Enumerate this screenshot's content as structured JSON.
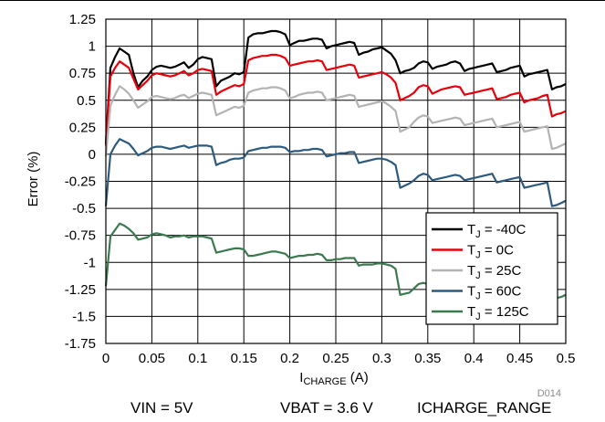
{
  "figure_id": "D014",
  "conditions": [
    "VIN = 5V",
    "VBAT = 3.6 V",
    "ICHARGE_RANGE"
  ],
  "chart_data": {
    "type": "line",
    "title": "",
    "xlabel": "I",
    "xlabel_sub": "CHARGE",
    "xlabel_unit": " (A)",
    "ylabel": "Error (%)",
    "xlim": [
      0,
      0.5
    ],
    "ylim": [
      -1.75,
      1.25
    ],
    "grid": true,
    "legend_position": "bottom-right",
    "x_ticks": [
      0,
      0.05,
      0.1,
      0.15,
      0.2,
      0.25,
      0.3,
      0.35,
      0.4,
      0.45,
      0.5
    ],
    "x_tick_labels": [
      "0",
      "0.05",
      "0.1",
      "0.15",
      "0.2",
      "0.25",
      "0.3",
      "0.35",
      "0.4",
      "0.45",
      "0.5"
    ],
    "y_ticks": [
      1.25,
      1,
      0.75,
      0.5,
      0.25,
      0,
      -0.25,
      -0.5,
      -0.75,
      -1,
      -1.25,
      -1.5,
      -1.75
    ],
    "y_tick_labels": [
      "1.25",
      "1",
      "0.75",
      "0.5",
      "0.25",
      "0",
      "-0.25",
      "-0.5",
      "-0.75",
      "-1",
      "-1.25",
      "-1.5",
      "-1.75"
    ],
    "x": [
      0,
      0.005,
      0.01,
      0.015,
      0.02,
      0.025,
      0.03,
      0.035,
      0.04,
      0.045,
      0.05,
      0.055,
      0.06,
      0.065,
      0.07,
      0.075,
      0.08,
      0.085,
      0.09,
      0.095,
      0.1,
      0.105,
      0.11,
      0.115,
      0.12,
      0.125,
      0.13,
      0.135,
      0.14,
      0.145,
      0.15,
      0.155,
      0.16,
      0.165,
      0.17,
      0.175,
      0.18,
      0.185,
      0.19,
      0.195,
      0.2,
      0.205,
      0.21,
      0.215,
      0.22,
      0.225,
      0.23,
      0.235,
      0.24,
      0.245,
      0.25,
      0.255,
      0.26,
      0.265,
      0.27,
      0.275,
      0.28,
      0.285,
      0.29,
      0.295,
      0.3,
      0.305,
      0.31,
      0.315,
      0.32,
      0.325,
      0.33,
      0.335,
      0.34,
      0.345,
      0.35,
      0.355,
      0.36,
      0.365,
      0.37,
      0.375,
      0.38,
      0.385,
      0.39,
      0.395,
      0.4,
      0.405,
      0.41,
      0.415,
      0.42,
      0.425,
      0.43,
      0.435,
      0.44,
      0.445,
      0.45,
      0.455,
      0.46,
      0.465,
      0.47,
      0.475,
      0.48,
      0.485,
      0.49,
      0.495,
      0.5
    ],
    "series": [
      {
        "name": "T_J = -40C",
        "name_main": "T",
        "name_sub": "J",
        "name_rest": " = -40C",
        "color": "#000000",
        "values": [
          0.1,
          0.8,
          0.9,
          0.98,
          0.95,
          0.92,
          0.75,
          0.62,
          0.68,
          0.72,
          0.78,
          0.81,
          0.82,
          0.81,
          0.8,
          0.81,
          0.83,
          0.85,
          0.8,
          0.83,
          0.88,
          0.9,
          0.89,
          0.88,
          0.63,
          0.68,
          0.7,
          0.72,
          0.75,
          0.74,
          0.76,
          1.08,
          1.11,
          1.12,
          1.12,
          1.13,
          1.14,
          1.14,
          1.13,
          1.11,
          1.01,
          1.03,
          1.05,
          1.05,
          1.06,
          1.07,
          1.07,
          1.06,
          0.98,
          1.0,
          1.01,
          1.02,
          1.03,
          1.04,
          1.03,
          0.92,
          0.94,
          0.95,
          0.97,
          0.98,
          0.99,
          0.96,
          0.93,
          0.87,
          0.75,
          0.77,
          0.78,
          0.8,
          0.84,
          0.86,
          0.85,
          0.79,
          0.81,
          0.82,
          0.83,
          0.85,
          0.86,
          0.84,
          0.77,
          0.79,
          0.8,
          0.81,
          0.82,
          0.83,
          0.84,
          0.76,
          0.77,
          0.78,
          0.8,
          0.81,
          0.82,
          0.72,
          0.74,
          0.75,
          0.76,
          0.77,
          0.78,
          0.6,
          0.62,
          0.63,
          0.65
        ]
      },
      {
        "name": "T_J = 0C",
        "name_main": "T",
        "name_sub": "J",
        "name_rest": " = 0C",
        "color": "#e8000b",
        "values": [
          0.08,
          0.72,
          0.8,
          0.86,
          0.83,
          0.8,
          0.7,
          0.6,
          0.64,
          0.68,
          0.73,
          0.75,
          0.74,
          0.73,
          0.72,
          0.73,
          0.75,
          0.77,
          0.73,
          0.75,
          0.78,
          0.79,
          0.78,
          0.77,
          0.55,
          0.58,
          0.6,
          0.62,
          0.64,
          0.63,
          0.65,
          0.87,
          0.89,
          0.9,
          0.91,
          0.91,
          0.92,
          0.92,
          0.91,
          0.89,
          0.82,
          0.83,
          0.84,
          0.85,
          0.86,
          0.86,
          0.87,
          0.86,
          0.78,
          0.79,
          0.8,
          0.81,
          0.82,
          0.83,
          0.82,
          0.71,
          0.72,
          0.73,
          0.74,
          0.75,
          0.76,
          0.74,
          0.71,
          0.66,
          0.5,
          0.52,
          0.54,
          0.57,
          0.62,
          0.64,
          0.63,
          0.56,
          0.58,
          0.6,
          0.61,
          0.62,
          0.63,
          0.62,
          0.55,
          0.56,
          0.57,
          0.58,
          0.59,
          0.6,
          0.61,
          0.51,
          0.52,
          0.53,
          0.55,
          0.56,
          0.57,
          0.48,
          0.5,
          0.51,
          0.52,
          0.54,
          0.55,
          0.35,
          0.37,
          0.38,
          0.4
        ]
      },
      {
        "name": "T_J = 25C",
        "name_main": "T",
        "name_sub": "J",
        "name_rest": " = 25C",
        "color": "#b3b3b3",
        "values": [
          -0.02,
          0.45,
          0.55,
          0.63,
          0.6,
          0.56,
          0.5,
          0.43,
          0.46,
          0.49,
          0.53,
          0.54,
          0.53,
          0.52,
          0.51,
          0.52,
          0.54,
          0.55,
          0.52,
          0.54,
          0.56,
          0.57,
          0.56,
          0.55,
          0.36,
          0.38,
          0.4,
          0.42,
          0.44,
          0.43,
          0.45,
          0.57,
          0.59,
          0.6,
          0.61,
          0.61,
          0.62,
          0.62,
          0.61,
          0.59,
          0.52,
          0.53,
          0.55,
          0.56,
          0.57,
          0.57,
          0.58,
          0.57,
          0.5,
          0.51,
          0.52,
          0.53,
          0.54,
          0.55,
          0.54,
          0.44,
          0.45,
          0.46,
          0.47,
          0.48,
          0.49,
          0.47,
          0.44,
          0.4,
          0.21,
          0.23,
          0.25,
          0.3,
          0.34,
          0.36,
          0.35,
          0.29,
          0.3,
          0.31,
          0.32,
          0.33,
          0.34,
          0.33,
          0.27,
          0.28,
          0.29,
          0.3,
          0.31,
          0.32,
          0.33,
          0.25,
          0.26,
          0.27,
          0.28,
          0.29,
          0.3,
          0.21,
          0.22,
          0.23,
          0.24,
          0.25,
          0.26,
          0.05,
          0.06,
          0.08,
          0.1
        ]
      },
      {
        "name": "T_J = 60C",
        "name_main": "T",
        "name_sub": "J",
        "name_rest": " = 60C",
        "color": "#2d5b7f",
        "values": [
          -0.48,
          0.0,
          0.08,
          0.14,
          0.12,
          0.1,
          0.05,
          -0.01,
          0.01,
          0.03,
          0.06,
          0.07,
          0.07,
          0.06,
          0.05,
          0.06,
          0.07,
          0.08,
          0.06,
          0.07,
          0.08,
          0.08,
          0.08,
          0.07,
          -0.1,
          -0.08,
          -0.07,
          -0.05,
          -0.04,
          -0.04,
          -0.03,
          0.03,
          0.04,
          0.05,
          0.06,
          0.06,
          0.07,
          0.07,
          0.07,
          0.06,
          0.02,
          0.03,
          0.03,
          0.04,
          0.04,
          0.05,
          0.05,
          0.04,
          -0.02,
          -0.01,
          0.0,
          0.01,
          0.01,
          0.02,
          0.02,
          -0.08,
          -0.07,
          -0.06,
          -0.05,
          -0.04,
          -0.04,
          -0.05,
          -0.07,
          -0.1,
          -0.31,
          -0.29,
          -0.27,
          -0.24,
          -0.2,
          -0.18,
          -0.19,
          -0.24,
          -0.23,
          -0.22,
          -0.21,
          -0.2,
          -0.19,
          -0.2,
          -0.24,
          -0.23,
          -0.22,
          -0.21,
          -0.2,
          -0.19,
          -0.18,
          -0.26,
          -0.25,
          -0.24,
          -0.23,
          -0.22,
          -0.21,
          -0.31,
          -0.3,
          -0.29,
          -0.28,
          -0.27,
          -0.26,
          -0.48,
          -0.47,
          -0.45,
          -0.43
        ]
      },
      {
        "name": "T_J = 125C",
        "name_main": "T",
        "name_sub": "J",
        "name_rest": " = 125C",
        "color": "#3b7a4f",
        "values": [
          -1.22,
          -0.76,
          -0.7,
          -0.64,
          -0.66,
          -0.69,
          -0.73,
          -0.79,
          -0.78,
          -0.77,
          -0.74,
          -0.73,
          -0.74,
          -0.75,
          -0.77,
          -0.76,
          -0.76,
          -0.75,
          -0.77,
          -0.76,
          -0.76,
          -0.76,
          -0.77,
          -0.78,
          -0.91,
          -0.9,
          -0.89,
          -0.88,
          -0.87,
          -0.87,
          -0.88,
          -0.94,
          -0.94,
          -0.93,
          -0.92,
          -0.91,
          -0.9,
          -0.9,
          -0.91,
          -0.92,
          -0.96,
          -0.95,
          -0.94,
          -0.94,
          -0.93,
          -0.93,
          -0.92,
          -0.93,
          -0.98,
          -0.98,
          -0.97,
          -0.97,
          -0.96,
          -0.96,
          -0.96,
          -1.03,
          -1.02,
          -1.02,
          -1.02,
          -1.01,
          -1.01,
          -1.02,
          -1.03,
          -1.06,
          -1.3,
          -1.29,
          -1.28,
          -1.24,
          -1.2,
          -1.19,
          -1.2,
          -1.24,
          -1.23,
          -1.22,
          -1.21,
          -1.21,
          -1.2,
          -1.21,
          -1.24,
          -1.23,
          -1.23,
          -1.22,
          -1.22,
          -1.21,
          -1.21,
          -1.25,
          -1.25,
          -1.24,
          -1.24,
          -1.23,
          -1.23,
          -1.28,
          -1.28,
          -1.27,
          -1.27,
          -1.26,
          -1.26,
          -1.34,
          -1.33,
          -1.32,
          -1.3
        ]
      }
    ]
  }
}
